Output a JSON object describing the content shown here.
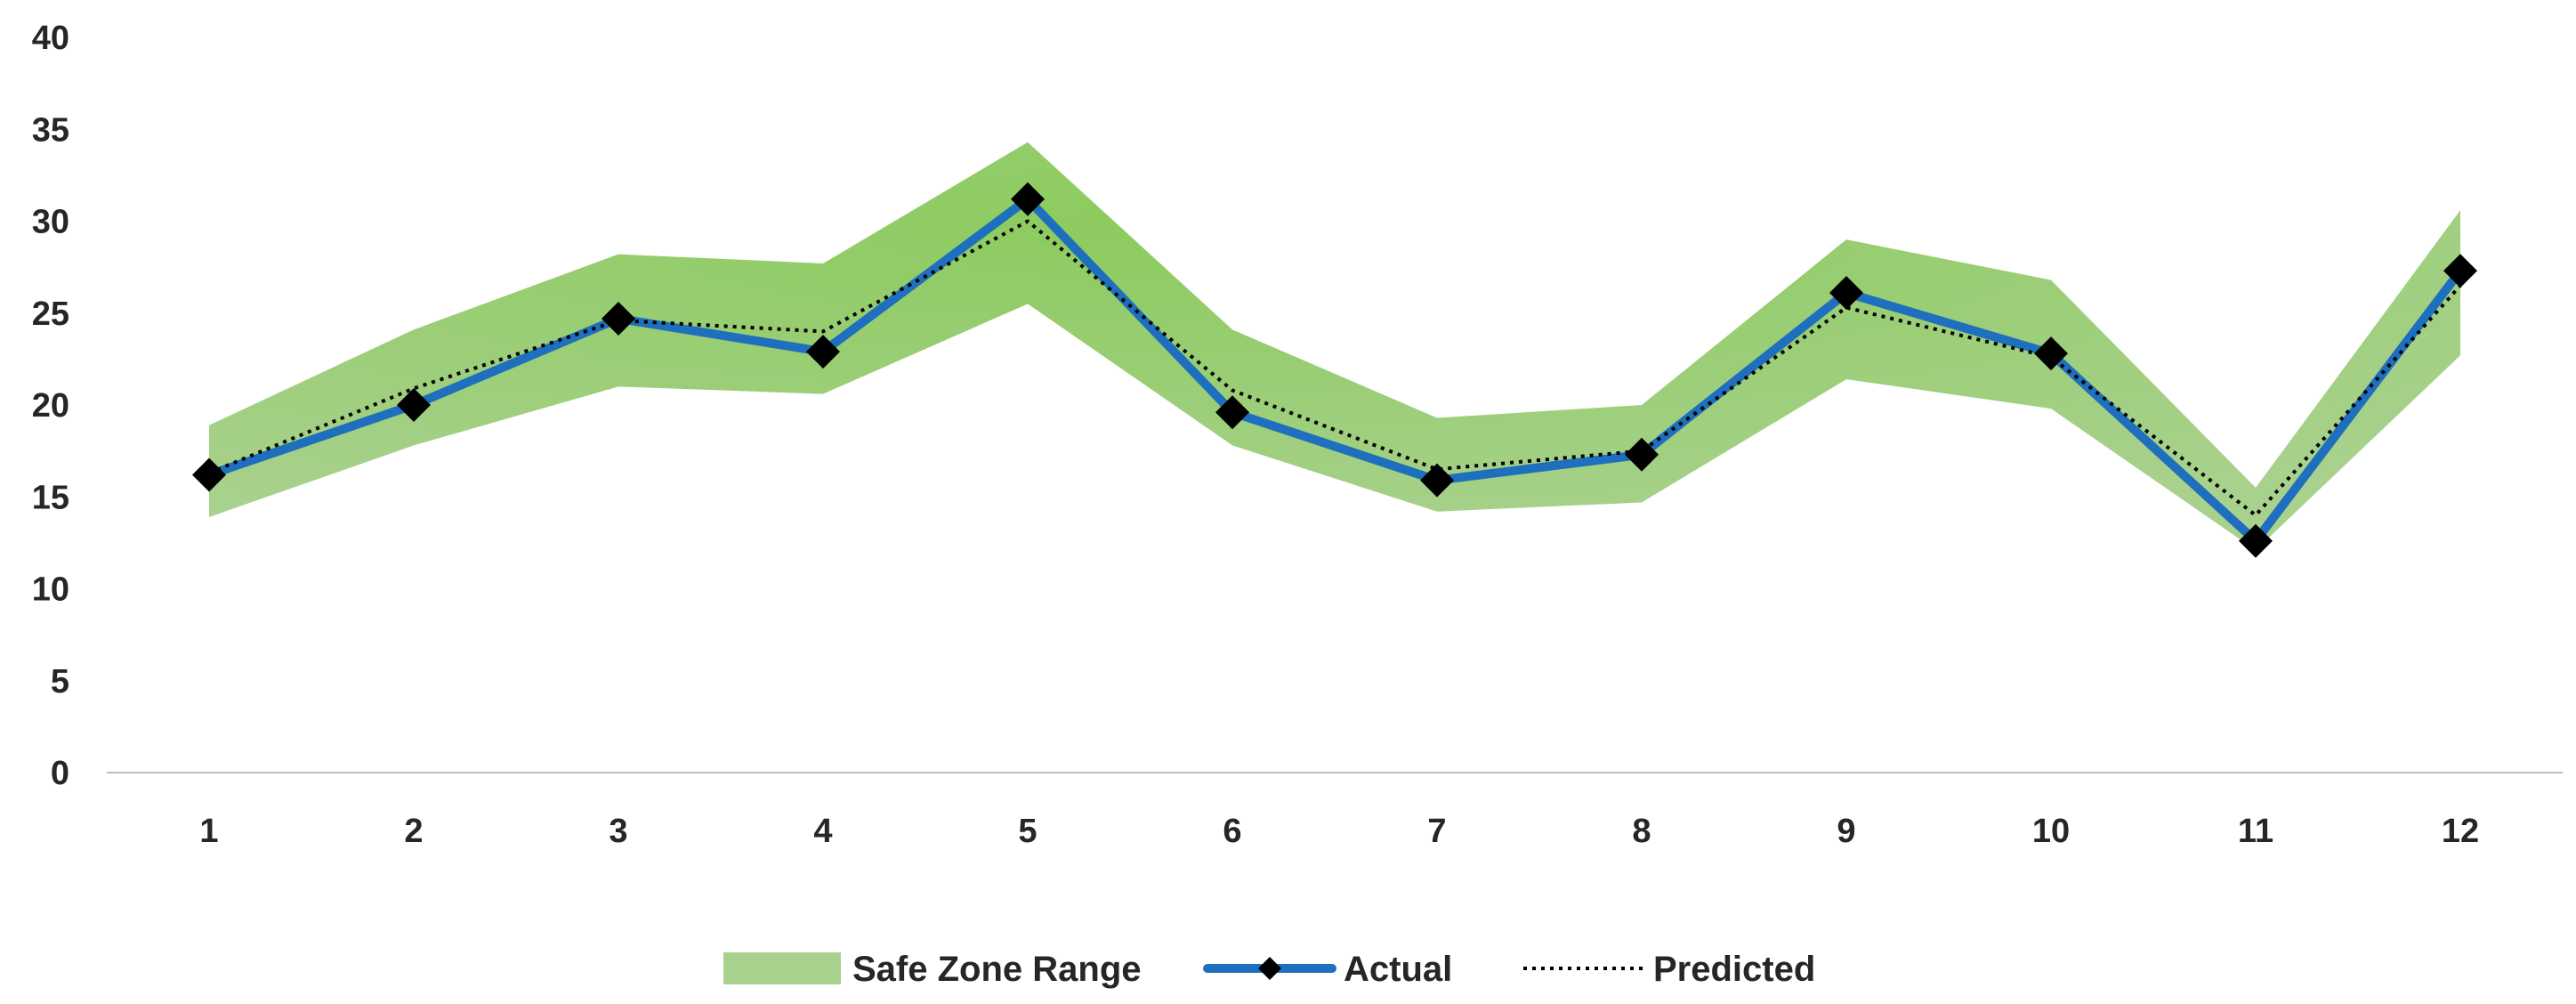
{
  "chart_data": {
    "type": "line",
    "title": "",
    "xlabel": "",
    "ylabel": "",
    "categories": [
      "1",
      "2",
      "3",
      "4",
      "5",
      "6",
      "7",
      "8",
      "9",
      "10",
      "11",
      "12"
    ],
    "ylim": [
      0,
      40
    ],
    "yticks": [
      "0",
      "5",
      "10",
      "15",
      "20",
      "25",
      "30",
      "35",
      "40"
    ],
    "ytick_values": [
      0,
      5,
      10,
      15,
      20,
      25,
      30,
      35,
      40
    ],
    "grid": false,
    "legend_position": "bottom-center",
    "series": [
      {
        "name": "Safe Zone Range",
        "kind": "band",
        "upper": [
          18.9,
          24.1,
          28.2,
          27.7,
          34.3,
          24.1,
          19.3,
          20.0,
          29.0,
          26.8,
          15.5,
          30.6
        ],
        "lower": [
          13.9,
          17.8,
          21.0,
          20.6,
          25.5,
          17.8,
          14.2,
          14.7,
          21.4,
          19.8,
          12.1,
          22.7
        ],
        "color": "#A9D18E",
        "accent_color": "#7DC64A"
      },
      {
        "name": "Actual",
        "kind": "line",
        "values": [
          16.2,
          20.0,
          24.7,
          22.9,
          31.2,
          19.6,
          15.9,
          17.3,
          26.1,
          22.8,
          12.6,
          27.3
        ],
        "color": "#1F6FBF",
        "marker": "diamond",
        "marker_color": "#000000"
      },
      {
        "name": "Predicted",
        "kind": "line",
        "style": "dotted",
        "values": [
          16.3,
          20.9,
          24.6,
          24.0,
          30.0,
          20.8,
          16.5,
          17.5,
          25.3,
          22.6,
          14.0,
          26.5
        ],
        "color": "#000000"
      }
    ]
  }
}
